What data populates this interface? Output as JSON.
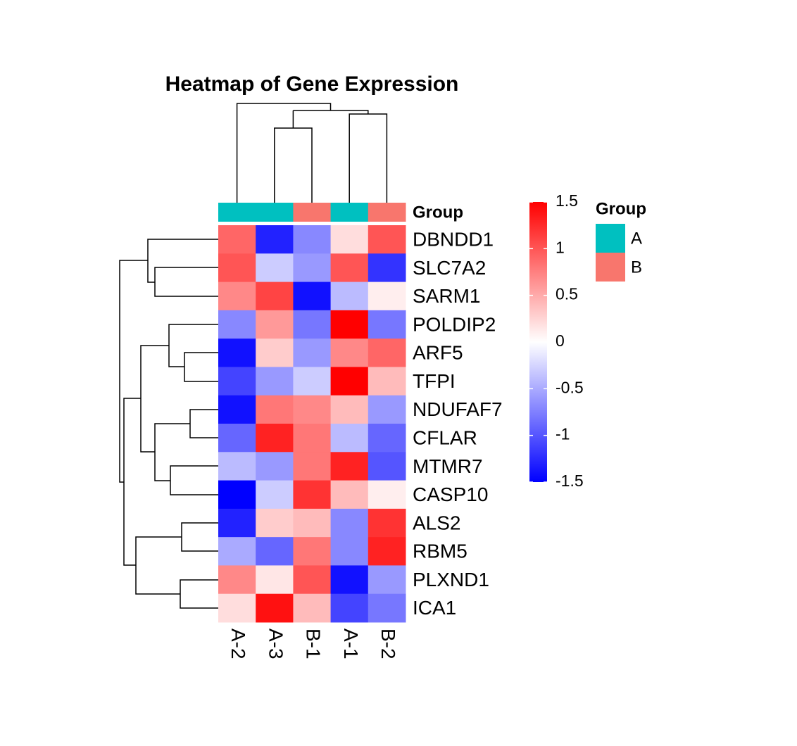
{
  "chart_data": {
    "type": "heatmap",
    "title": "Heatmap of Gene Expression",
    "columns": [
      "A-2",
      "A-3",
      "B-1",
      "A-1",
      "B-2"
    ],
    "rows": [
      "DBNDD1",
      "SLC7A2",
      "SARM1",
      "POLDIP2",
      "ARF5",
      "TFPI",
      "NDUFAF7",
      "CFLAR",
      "MTMR7",
      "CASP10",
      "ALS2",
      "RBM5",
      "PLXND1",
      "ICA1"
    ],
    "values": [
      [
        0.9,
        -1.3,
        -0.7,
        0.2,
        1.0
      ],
      [
        1.0,
        -0.3,
        -0.6,
        1.0,
        -1.2
      ],
      [
        0.7,
        1.1,
        -1.4,
        -0.4,
        0.1
      ],
      [
        -0.7,
        0.6,
        -0.8,
        1.5,
        -0.8
      ],
      [
        -1.4,
        0.3,
        -0.6,
        0.7,
        0.9
      ],
      [
        -1.1,
        -0.6,
        -0.3,
        1.5,
        0.4
      ],
      [
        -1.4,
        0.8,
        0.7,
        0.4,
        -0.6
      ],
      [
        -0.9,
        1.3,
        0.8,
        -0.4,
        -0.9
      ],
      [
        -0.4,
        -0.6,
        0.8,
        1.3,
        -1.0
      ],
      [
        -1.5,
        -0.3,
        1.2,
        0.4,
        0.1
      ],
      [
        -1.3,
        0.3,
        0.4,
        -0.7,
        1.2
      ],
      [
        -0.5,
        -0.9,
        0.8,
        -0.7,
        1.3
      ],
      [
        0.7,
        0.15,
        1.0,
        -1.4,
        -0.6
      ],
      [
        0.2,
        1.4,
        0.4,
        -1.1,
        -0.8
      ]
    ],
    "colors": [
      "#0000FF",
      "#FFFFFF",
      "#FF0000"
    ],
    "zlim": [
      -1.5,
      1.5
    ],
    "zticks": [
      1.5,
      1,
      0.5,
      0,
      -0.5,
      -1,
      -1.5
    ],
    "annotation": {
      "name": "Group",
      "values": [
        "A",
        "A",
        "B",
        "A",
        "B"
      ]
    },
    "legend": {
      "title": "Group",
      "items": [
        {
          "name": "A",
          "color": "#00C0C0"
        },
        {
          "name": "B",
          "color": "#F8766D"
        }
      ]
    }
  }
}
